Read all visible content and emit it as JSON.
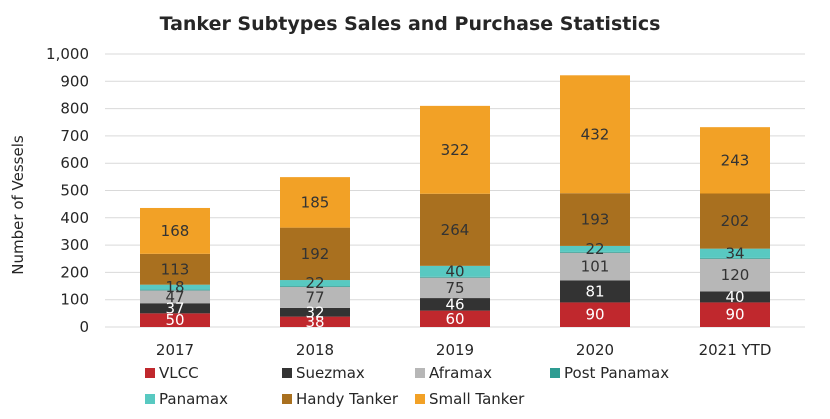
{
  "chart_data": {
    "type": "bar",
    "stacked": true,
    "title": "Tanker Subtypes Sales and Purchase Statistics",
    "xlabel": "",
    "ylabel": "Number of Vessels",
    "ylim": [
      0,
      1000
    ],
    "yticks": [
      0,
      100,
      200,
      300,
      400,
      500,
      600,
      700,
      800,
      900,
      1000
    ],
    "ytick_labels": [
      "0",
      "100",
      "200",
      "300",
      "400",
      "500",
      "600",
      "700",
      "800",
      "900",
      "1,000"
    ],
    "grid": true,
    "legend_position": "bottom",
    "categories": [
      "2017",
      "2018",
      "2019",
      "2020",
      "2021 YTD"
    ],
    "series": [
      {
        "name": "VLCC",
        "color": "#c0282d",
        "label_color": "#ffffff",
        "values": [
          50,
          38,
          60,
          90,
          90
        ]
      },
      {
        "name": "Suezmax",
        "color": "#333333",
        "label_color": "#ffffff",
        "values": [
          37,
          32,
          46,
          81,
          40
        ]
      },
      {
        "name": "Aframax",
        "color": "#b7b7b7",
        "label_color": "#333333",
        "values": [
          47,
          77,
          75,
          101,
          120
        ]
      },
      {
        "name": "Post Panamax",
        "color": "#2e9c92",
        "label_color": "#333333",
        "values": [
          3,
          3,
          3,
          3,
          3
        ]
      },
      {
        "name": "Panamax",
        "color": "#58c9c1",
        "label_color": "#333333",
        "values": [
          18,
          22,
          40,
          22,
          34
        ]
      },
      {
        "name": "Handy Tanker",
        "color": "#a9701f",
        "label_color": "#333333",
        "values": [
          113,
          192,
          264,
          193,
          202
        ]
      },
      {
        "name": "Small Tanker",
        "color": "#f2a126",
        "label_color": "#333333",
        "values": [
          168,
          185,
          322,
          432,
          243
        ]
      }
    ],
    "data_labels": [
      [
        "50",
        "38",
        "60",
        "90",
        "90"
      ],
      [
        "37",
        "32",
        "46",
        "81",
        "40"
      ],
      [
        "47",
        "77",
        "75",
        "101",
        "120"
      ],
      [
        "",
        "",
        "",
        "",
        ""
      ],
      [
        "18",
        "22",
        "40",
        "22",
        "34"
      ],
      [
        "113",
        "192",
        "264",
        "193",
        "202"
      ],
      [
        "168",
        "185",
        "322",
        "432",
        "243"
      ]
    ]
  }
}
